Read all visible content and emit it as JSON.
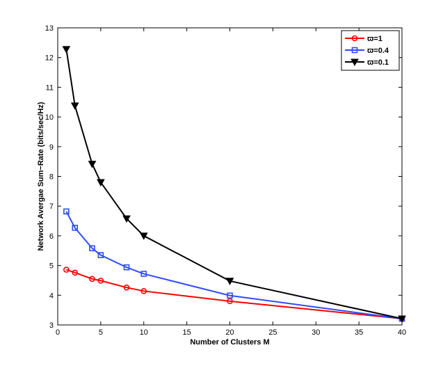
{
  "chart_data": {
    "type": "line",
    "xlabel": "Number of Clusters M",
    "ylabel": "Network Avergae Sum−Rate (bits/sec/Hz)",
    "xlim": [
      0,
      40
    ],
    "ylim": [
      3,
      13
    ],
    "xticks": [
      0,
      5,
      10,
      15,
      20,
      25,
      30,
      35,
      40
    ],
    "yticks": [
      3,
      4,
      5,
      6,
      7,
      8,
      9,
      10,
      11,
      12,
      13
    ],
    "grid": false,
    "legend_position": "top-right",
    "x": [
      1,
      2,
      4,
      5,
      8,
      10,
      20,
      40
    ],
    "series": [
      {
        "name": "ϖ=1",
        "color": "#ff0000",
        "marker": "circle",
        "values": [
          4.86,
          4.76,
          4.55,
          4.49,
          4.26,
          4.14,
          3.8,
          3.21
        ]
      },
      {
        "name": "ϖ=0.4",
        "color": "#2f4bff",
        "marker": "square",
        "values": [
          6.82,
          6.27,
          5.58,
          5.35,
          4.94,
          4.72,
          3.99,
          3.21
        ]
      },
      {
        "name": "ϖ=0.1",
        "color": "#000000",
        "marker": "triangle-down",
        "values": [
          12.28,
          10.38,
          8.42,
          7.8,
          6.58,
          6.0,
          4.48,
          3.21
        ]
      }
    ]
  }
}
